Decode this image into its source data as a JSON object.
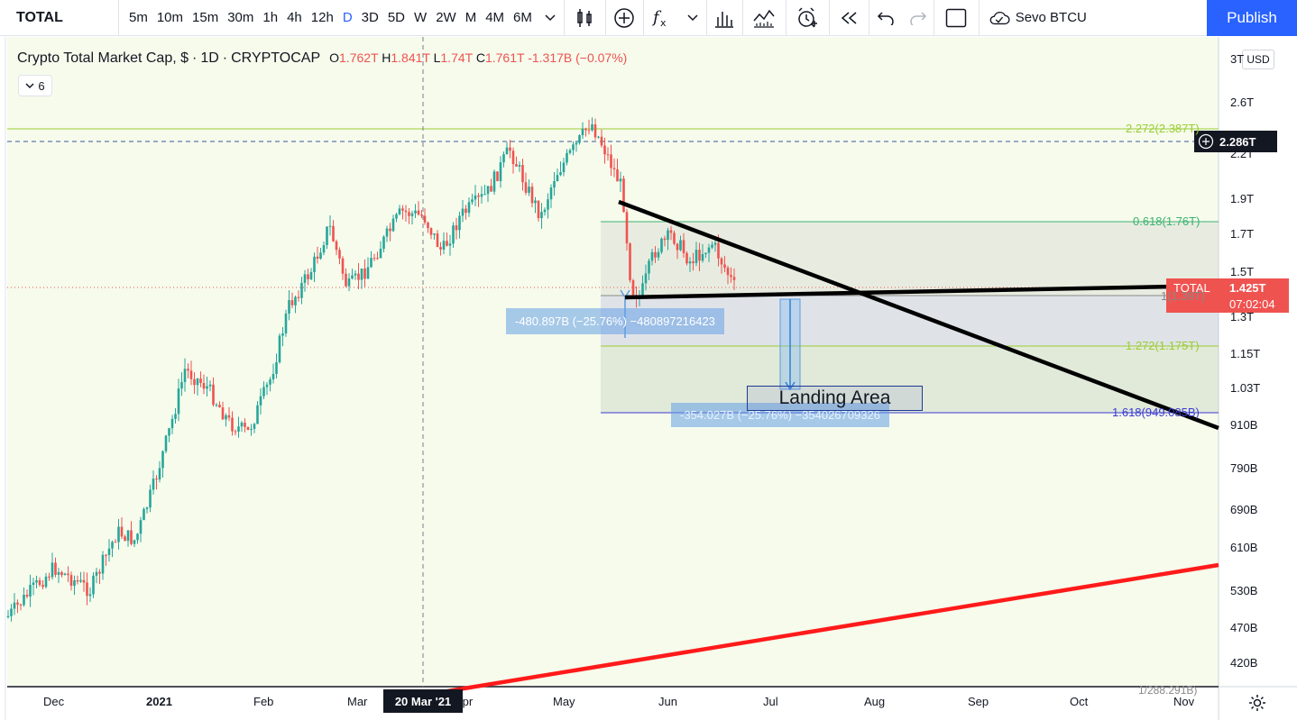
{
  "toolbar": {
    "symbol": "TOTAL",
    "intervals": [
      "5m",
      "10m",
      "15m",
      "30m",
      "1h",
      "4h",
      "12h",
      "D",
      "3D",
      "5D",
      "W",
      "2W",
      "M",
      "4M",
      "6M"
    ],
    "active_interval": "D",
    "icons": [
      "chevron-down-icon",
      "candles-icon",
      "add-compare-icon",
      "indicators-icon",
      "chevron-down-icon",
      "financials-icon",
      "templates-icon",
      "alert-icon",
      "replay-icon",
      "undo-icon",
      "redo-icon",
      "layout-icon",
      "cloud-icon"
    ],
    "user": "Sevo BTCU",
    "publish_label": "Publish"
  },
  "legend": {
    "title": "Crypto Total Market Cap, $",
    "sep1": "·",
    "interval": "1D",
    "sep2": "·",
    "exchange": "CRYPTOCAP",
    "o_label": "O",
    "o_value": "1.762T",
    "h_label": "H",
    "h_value": "1.841T",
    "l_label": "L",
    "l_value": "1.74T",
    "c_label": "C",
    "c_value": "1.761T",
    "change": "-1.317B (−0.07%)",
    "collapse_count": "6"
  },
  "currency": "USD",
  "price_axis": [
    "3T",
    "2.6T",
    "2.2T",
    "1.9T",
    "1.7T",
    "1.5T",
    "1.3T",
    "1.15T",
    "1.03T",
    "910B",
    "790B",
    "690B",
    "610B",
    "530B",
    "470B",
    "420B",
    "1/288.291B)"
  ],
  "time_axis": [
    "Dec",
    "2021",
    "Feb",
    "Mar",
    "Apr",
    "May",
    "Jun",
    "Jul",
    "Aug",
    "Sep",
    "Oct",
    "Nov"
  ],
  "crosshair": {
    "price": "2.286T",
    "date": "20 Mar '21"
  },
  "last_price": {
    "symbol": "TOTAL",
    "price": "1.425T",
    "countdown": "07:02:04"
  },
  "fib_levels": [
    {
      "label": "2.272(2.387T)",
      "color": "#9acd32"
    },
    {
      "label": "0.618(1.76T)",
      "color": "#3cb371"
    },
    {
      "label": "1(1.39T)",
      "color": "#888888"
    },
    {
      "label": "1.272(1.175T)",
      "color": "#9acd32"
    },
    {
      "label": "1.618(949.085B)",
      "color": "#3b3bd0"
    }
  ],
  "measures": [
    {
      "label": "-480.897B (−25.76%) −480897216423"
    },
    {
      "label": "-354.027B (−25.76%) −354026709326"
    }
  ],
  "annotation": "Landing Area",
  "colors": {
    "up": "#26a69a",
    "down": "#ef5350",
    "accent": "#2962ff",
    "trendline": "#000000",
    "support": "#ff1a1a"
  },
  "chart_data": {
    "type": "candlestick",
    "title": "Crypto Total Market Cap, $",
    "series": [
      {
        "name": "TOTAL",
        "x": [
          "Dec",
          "2021",
          "Feb",
          "Mar",
          "Apr",
          "May",
          "Jun"
        ],
        "values": [
          0.57,
          0.76,
          1.05,
          1.45,
          1.85,
          2.35,
          1.6
        ]
      }
    ],
    "ylim": [
      0.4,
      3.0
    ],
    "scale": "log",
    "last_close": "1.425T"
  }
}
